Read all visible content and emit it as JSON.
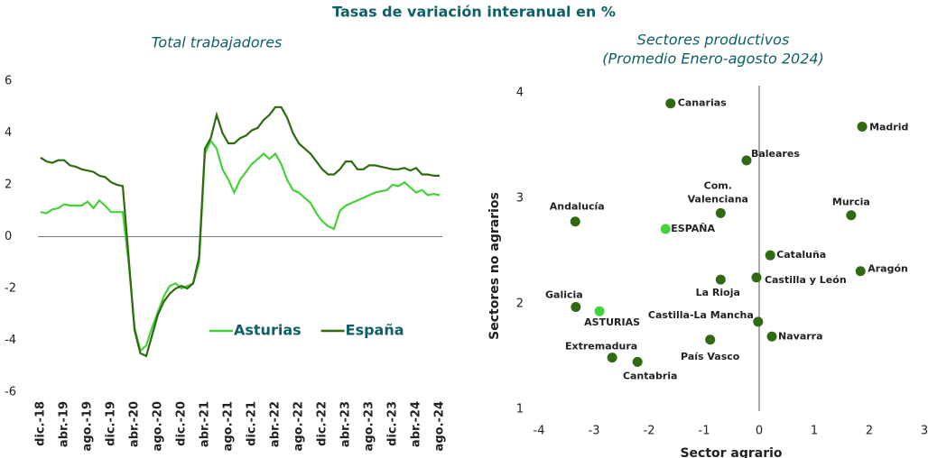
{
  "header": {
    "subtitle": "Tasas de variación interanual en %"
  },
  "chart_data": [
    {
      "type": "line",
      "title": "Total trabajadores",
      "categories": [
        "dic.-18",
        null,
        null,
        null,
        "abr.-19",
        null,
        null,
        null,
        "ago.-19",
        null,
        null,
        null,
        "dic.-19",
        null,
        null,
        null,
        "abr.-20",
        null,
        null,
        null,
        "ago.-20",
        null,
        null,
        null,
        "dic.-20",
        null,
        null,
        null,
        "abr.-21",
        null,
        null,
        null,
        "ago.-21",
        null,
        null,
        null,
        "dic.-21",
        null,
        null,
        null,
        "abr.-22",
        null,
        null,
        null,
        "ago.-22",
        null,
        null,
        null,
        "dic.-22",
        null,
        null,
        null,
        "abr.-23",
        null,
        null,
        null,
        "ago.-23",
        null,
        null,
        null,
        "dic.-23",
        null,
        null,
        null,
        "abr.-24",
        null,
        null,
        null,
        "ago.-24"
      ],
      "series": [
        {
          "name": "Asturias",
          "color": "#45d13a",
          "values": [
            0.95,
            0.9,
            1.05,
            1.1,
            1.25,
            1.2,
            1.2,
            1.2,
            1.35,
            1.1,
            1.4,
            1.2,
            0.95,
            0.95,
            0.95,
            -1.0,
            -3.5,
            -4.4,
            -4.2,
            -3.5,
            -2.9,
            -2.3,
            -1.9,
            -1.8,
            -2.0,
            -1.9,
            -1.8,
            -1.0,
            3.2,
            3.7,
            3.4,
            2.6,
            2.2,
            1.7,
            2.2,
            2.5,
            2.8,
            3.0,
            3.2,
            3.0,
            3.2,
            2.8,
            2.2,
            1.8,
            1.7,
            1.5,
            1.3,
            0.9,
            0.6,
            0.4,
            0.3,
            1.0,
            1.2,
            1.3,
            1.4,
            1.5,
            1.6,
            1.7,
            1.75,
            1.8,
            2.0,
            1.95,
            2.1,
            1.9,
            1.7,
            1.8,
            1.6,
            1.65,
            1.6
          ]
        },
        {
          "name": "España",
          "color": "#2f6a10",
          "values": [
            3.05,
            2.9,
            2.85,
            2.95,
            2.95,
            2.75,
            2.7,
            2.6,
            2.55,
            2.5,
            2.35,
            2.3,
            2.1,
            2.0,
            1.95,
            -0.8,
            -3.6,
            -4.5,
            -4.6,
            -3.8,
            -3.0,
            -2.5,
            -2.2,
            -2.0,
            -1.9,
            -2.0,
            -1.8,
            -0.8,
            3.4,
            3.8,
            4.7,
            4.0,
            3.6,
            3.6,
            3.8,
            3.9,
            4.1,
            4.2,
            4.5,
            4.7,
            5.0,
            5.0,
            4.6,
            4.0,
            3.6,
            3.4,
            3.2,
            2.9,
            2.6,
            2.4,
            2.4,
            2.6,
            2.9,
            2.9,
            2.6,
            2.6,
            2.75,
            2.75,
            2.7,
            2.65,
            2.6,
            2.6,
            2.65,
            2.55,
            2.65,
            2.4,
            2.4,
            2.35,
            2.35
          ]
        }
      ],
      "ylim": [
        -6,
        6
      ],
      "yticks": [
        -6,
        -4,
        -2,
        0,
        2,
        4,
        6
      ],
      "legend": "lower right"
    },
    {
      "type": "scatter",
      "title": "Sectores productivos",
      "subtitle": "(Promedio Enero-agosto 2024)",
      "xlabel": "Sector agrario",
      "ylabel": "Sectores no agrarios",
      "xlim": [
        -4,
        3
      ],
      "ylim": [
        1,
        4
      ],
      "xticks": [
        -4,
        -3,
        -2,
        -1,
        0,
        1,
        2,
        3
      ],
      "yticks": [
        1,
        2,
        3,
        4
      ],
      "points": [
        {
          "label": "Canarias",
          "x": -1.61,
          "y": 3.9,
          "color": "#2f6a10"
        },
        {
          "label": "Madrid",
          "x": 1.87,
          "y": 3.68,
          "color": "#2f6a10"
        },
        {
          "label": "Baleares",
          "x": -0.23,
          "y": 3.36,
          "color": "#2f6a10"
        },
        {
          "label": "Com. Valenciana",
          "x": -0.7,
          "y": 2.86,
          "color": "#2f6a10"
        },
        {
          "label": "Murcia",
          "x": 1.67,
          "y": 2.84,
          "color": "#2f6a10"
        },
        {
          "label": "Andalucía",
          "x": -3.34,
          "y": 2.78,
          "color": "#2f6a10"
        },
        {
          "label": "ESPAÑA",
          "x": -1.7,
          "y": 2.71,
          "color": "#45d13a"
        },
        {
          "label": "Cataluña",
          "x": 0.2,
          "y": 2.46,
          "color": "#2f6a10"
        },
        {
          "label": "Castilla y León",
          "x": -0.05,
          "y": 2.25,
          "color": "#2f6a10"
        },
        {
          "label": "La Rioja",
          "x": -0.7,
          "y": 2.23,
          "color": "#2f6a10"
        },
        {
          "label": "Aragón",
          "x": 1.84,
          "y": 2.31,
          "color": "#2f6a10"
        },
        {
          "label": "Galicia",
          "x": -3.33,
          "y": 1.97,
          "color": "#2f6a10"
        },
        {
          "label": "ASTURIAS",
          "x": -2.9,
          "y": 1.93,
          "color": "#45d13a"
        },
        {
          "label": "Castilla-La Mancha",
          "x": -0.02,
          "y": 1.83,
          "color": "#2f6a10"
        },
        {
          "label": "Navarra",
          "x": 0.23,
          "y": 1.69,
          "color": "#2f6a10"
        },
        {
          "label": "País Vasco",
          "x": -0.89,
          "y": 1.66,
          "color": "#2f6a10"
        },
        {
          "label": "Extremadura",
          "x": -2.67,
          "y": 1.49,
          "color": "#2f6a10"
        },
        {
          "label": "Cantabria",
          "x": -2.21,
          "y": 1.45,
          "color": "#2f6a10"
        }
      ]
    }
  ]
}
